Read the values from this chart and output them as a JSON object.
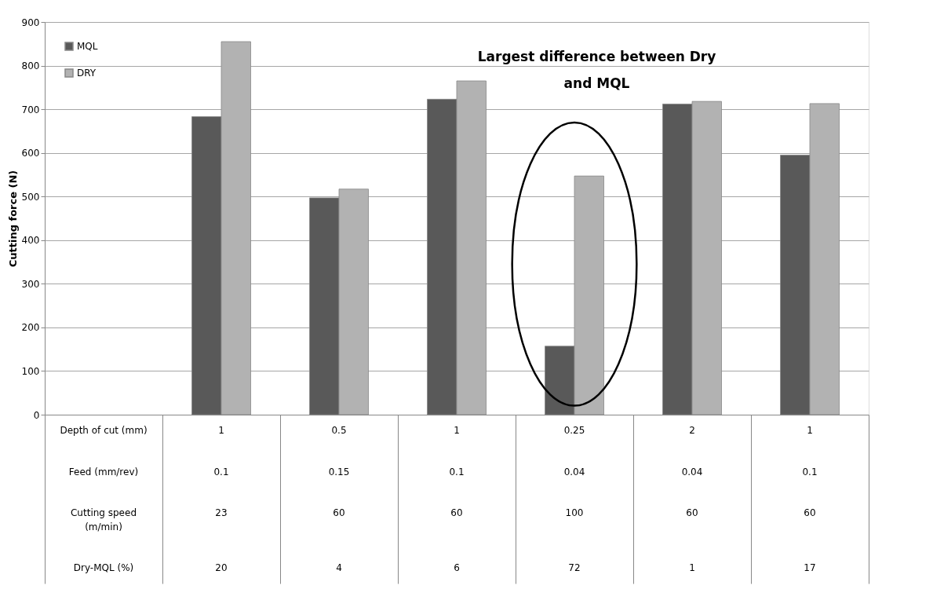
{
  "chart_data": {
    "type": "bar",
    "ylabel": "Cutting force (N)",
    "categories": [
      "Depth of cut (mm)\n\n\nFeed (mm/rev)\n\n\nCutting speed\n(m/min)\n\n\nDry-MQL (%)",
      "1\n\n\n0.1\n\n\n23\n\n\n\n20",
      "0.5\n\n\n0.15\n\n\n60\n\n\n\n4",
      "1\n\n\n0.1\n\n\n60\n\n\n\n6",
      "0.25\n\n\n0.04\n\n\n100\n\n\n\n72",
      "2\n\n\n0.04\n\n\n60\n\n\n\n1",
      "1\n\n\n0.1\n\n\n60\n\n\n\n17"
    ],
    "series": [
      {
        "name": "MQL",
        "color": "#595959",
        "values": [
          null,
          683,
          497,
          723,
          157,
          712,
          595
        ]
      },
      {
        "name": "DRY",
        "color": "#b2b2b2",
        "values": [
          null,
          855,
          517,
          765,
          547,
          718,
          713
        ]
      }
    ],
    "ylim": [
      0,
      900
    ],
    "yticks": [
      0,
      100,
      200,
      300,
      400,
      500,
      600,
      700,
      800,
      900
    ],
    "grid": "y",
    "legend": "top left",
    "annotations": [
      "Largest difference between Dry\nand MQL"
    ]
  }
}
